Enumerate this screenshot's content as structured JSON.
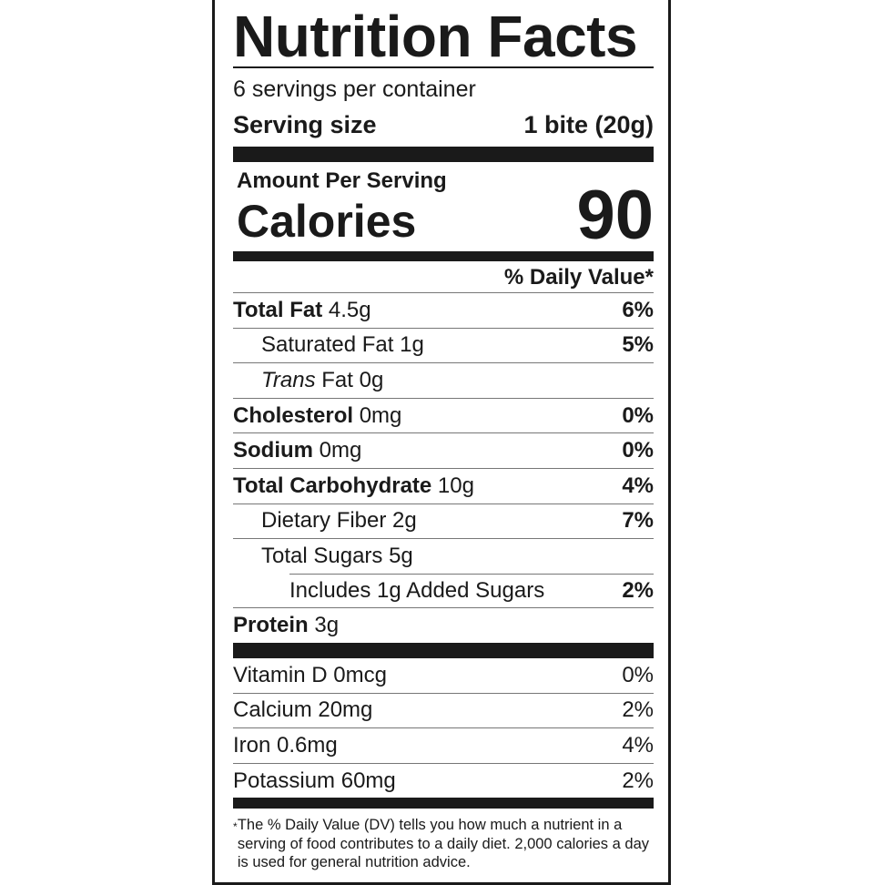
{
  "title": "Nutrition Facts",
  "servings_per_container": "6 servings per container",
  "serving_size": {
    "label": "Serving size",
    "value": "1 bite (20g)"
  },
  "amount_per_serving": "Amount Per Serving",
  "calories": {
    "label": "Calories",
    "value": "90"
  },
  "daily_value_header": "% Daily Value*",
  "nutrients": [
    {
      "name": "Total Fat",
      "amount": "4.5g",
      "dv": "6%"
    },
    {
      "name": "Saturated Fat",
      "amount": "1g",
      "dv": "5%"
    },
    {
      "name": "Trans",
      "name_suffix": "Fat",
      "amount": "0g",
      "dv": ""
    },
    {
      "name": "Cholesterol",
      "amount": "0mg",
      "dv": "0%"
    },
    {
      "name": "Sodium",
      "amount": "0mg",
      "dv": "0%"
    },
    {
      "name": "Total Carbohydrate",
      "amount": "10g",
      "dv": "4%"
    },
    {
      "name": "Dietary Fiber",
      "amount": "2g",
      "dv": "7%"
    },
    {
      "name": "Total Sugars",
      "amount": "5g",
      "dv": ""
    },
    {
      "name": "Includes 1g Added Sugars",
      "amount": "",
      "dv": "2%"
    },
    {
      "name": "Protein",
      "amount": "3g",
      "dv": ""
    }
  ],
  "vitamins": [
    {
      "name": "Vitamin D",
      "amount": "0mcg",
      "dv": "0%"
    },
    {
      "name": "Calcium",
      "amount": "20mg",
      "dv": "2%"
    },
    {
      "name": "Iron",
      "amount": "0.6mg",
      "dv": "4%"
    },
    {
      "name": "Potassium",
      "amount": "60mg",
      "dv": "2%"
    }
  ],
  "footnote": {
    "star": "*",
    "text": "The % Daily Value (DV) tells you how much a nutrient in a serving of food contributes to a daily diet. 2,000 calories a day is used for general nutrition advice."
  }
}
